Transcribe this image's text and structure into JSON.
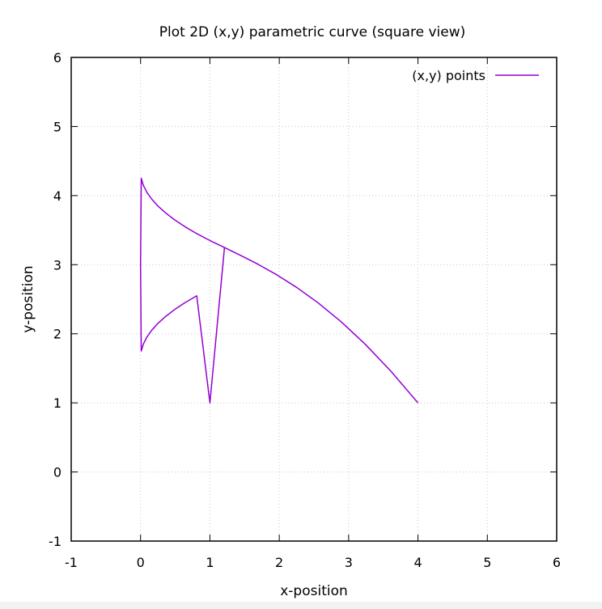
{
  "chart_data": {
    "type": "line",
    "title": "Plot 2D (x,y) parametric curve (square view)",
    "xlabel": "x-position",
    "ylabel": "y-position",
    "xlim": [
      -1,
      6
    ],
    "ylim": [
      -1,
      6
    ],
    "xticks": [
      -1,
      0,
      1,
      2,
      3,
      4,
      5,
      6
    ],
    "yticks": [
      -1,
      0,
      1,
      2,
      3,
      4,
      5,
      6
    ],
    "xtick_labels": [
      "-1",
      "0",
      "1",
      "2",
      "3",
      "4",
      "5",
      "6"
    ],
    "ytick_labels": [
      "-1",
      "0",
      "1",
      "2",
      "3",
      "4",
      "5",
      "6"
    ],
    "grid": true,
    "legend_position": "top-right",
    "series": [
      {
        "name": "(x,y) points",
        "color": "#9400d3",
        "x": [
          4.0,
          3.61,
          3.24,
          2.89,
          2.56,
          2.25,
          1.96,
          1.69,
          1.44,
          1.21,
          1.0,
          0.81,
          0.64,
          0.49,
          0.36,
          0.25,
          0.16,
          0.09,
          0.04,
          0.01,
          0.0,
          0.01,
          0.04,
          0.09,
          0.16,
          0.25,
          0.36,
          0.49,
          0.64,
          0.81,
          1.0,
          1.21,
          1.44,
          1.69,
          1.96,
          2.25,
          2.56,
          2.89,
          3.24,
          3.61,
          4.0
        ],
        "y": [
          1.0,
          1.458,
          1.848,
          2.176,
          2.448,
          2.672,
          2.856,
          3.008,
          3.136,
          3.248,
          3.35,
          3.45,
          3.55,
          3.65,
          3.75,
          3.85,
          3.95,
          4.05,
          4.15,
          4.25,
          3.0,
          1.75,
          1.85,
          1.95,
          2.05,
          2.15,
          2.25,
          2.35,
          2.45,
          2.55,
          1.0,
          3.248,
          3.136,
          3.008,
          2.856,
          2.672,
          2.448,
          2.176,
          1.848,
          1.458,
          1.0
        ]
      }
    ]
  }
}
